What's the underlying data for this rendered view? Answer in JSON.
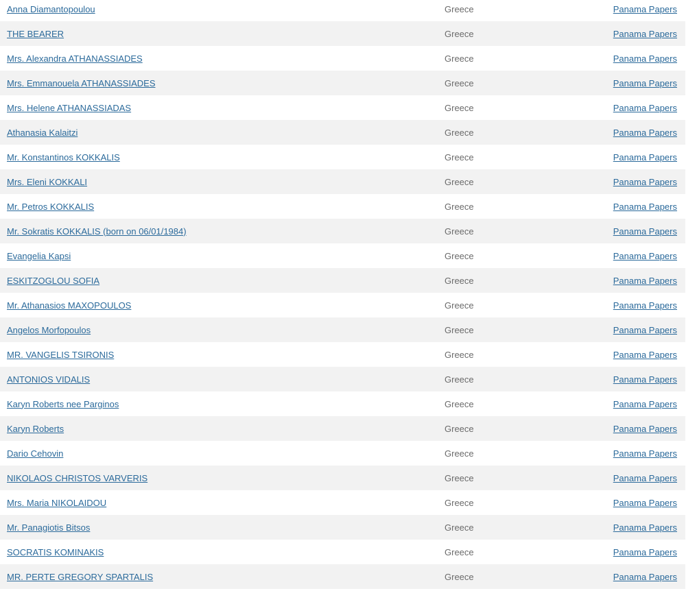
{
  "colors": {
    "link": "#2b6a9b",
    "text_muted": "#6b6b6b",
    "row_stripe": "#f2f2f2"
  },
  "rows": [
    {
      "name": "Anna Diamantopoulou",
      "country": "Greece",
      "source": "Panama Papers"
    },
    {
      "name": "THE BEARER",
      "country": "Greece",
      "source": "Panama Papers"
    },
    {
      "name": "Mrs. Alexandra ATHANASSIADES",
      "country": "Greece",
      "source": "Panama Papers"
    },
    {
      "name": "Mrs. Emmanouela ATHANASSIADES",
      "country": "Greece",
      "source": "Panama Papers"
    },
    {
      "name": "Mrs. Helene ATHANASSIADAS",
      "country": "Greece",
      "source": "Panama Papers"
    },
    {
      "name": "Athanasia Kalaitzi",
      "country": "Greece",
      "source": "Panama Papers"
    },
    {
      "name": "Mr. Konstantinos KOKKALIS",
      "country": "Greece",
      "source": "Panama Papers"
    },
    {
      "name": "Mrs. Eleni KOKKALI",
      "country": "Greece",
      "source": "Panama Papers"
    },
    {
      "name": "Mr. Petros KOKKALIS",
      "country": "Greece",
      "source": "Panama Papers"
    },
    {
      "name": "Mr. Sokratis KOKKALIS (born on 06/01/1984)",
      "country": "Greece",
      "source": "Panama Papers"
    },
    {
      "name": "Evangelia Kapsi",
      "country": "Greece",
      "source": "Panama Papers"
    },
    {
      "name": "ESKITZOGLOU SOFIA",
      "country": "Greece",
      "source": "Panama Papers"
    },
    {
      "name": "Mr. Athanasios MAXOPOULOS",
      "country": "Greece",
      "source": "Panama Papers"
    },
    {
      "name": "Angelos Morfopoulos",
      "country": "Greece",
      "source": "Panama Papers"
    },
    {
      "name": "MR. VANGELIS TSIRONIS",
      "country": "Greece",
      "source": "Panama Papers"
    },
    {
      "name": "ANTONIOS VIDALIS",
      "country": "Greece",
      "source": "Panama Papers"
    },
    {
      "name": "Karyn Roberts nee Parginos",
      "country": "Greece",
      "source": "Panama Papers"
    },
    {
      "name": "Karyn Roberts",
      "country": "Greece",
      "source": "Panama Papers"
    },
    {
      "name": "Dario Cehovin",
      "country": "Greece",
      "source": "Panama Papers"
    },
    {
      "name": "NIKOLAOS CHRISTOS VARVERIS",
      "country": "Greece",
      "source": "Panama Papers"
    },
    {
      "name": "Mrs. Maria NIKOLAIDOU",
      "country": "Greece",
      "source": "Panama Papers"
    },
    {
      "name": "Mr. Panagiotis Bitsos",
      "country": "Greece",
      "source": "Panama Papers"
    },
    {
      "name": "SOCRATIS KOMINAKIS",
      "country": "Greece",
      "source": "Panama Papers"
    },
    {
      "name": "MR. PERTE GREGORY SPARTALIS",
      "country": "Greece",
      "source": "Panama Papers"
    }
  ]
}
